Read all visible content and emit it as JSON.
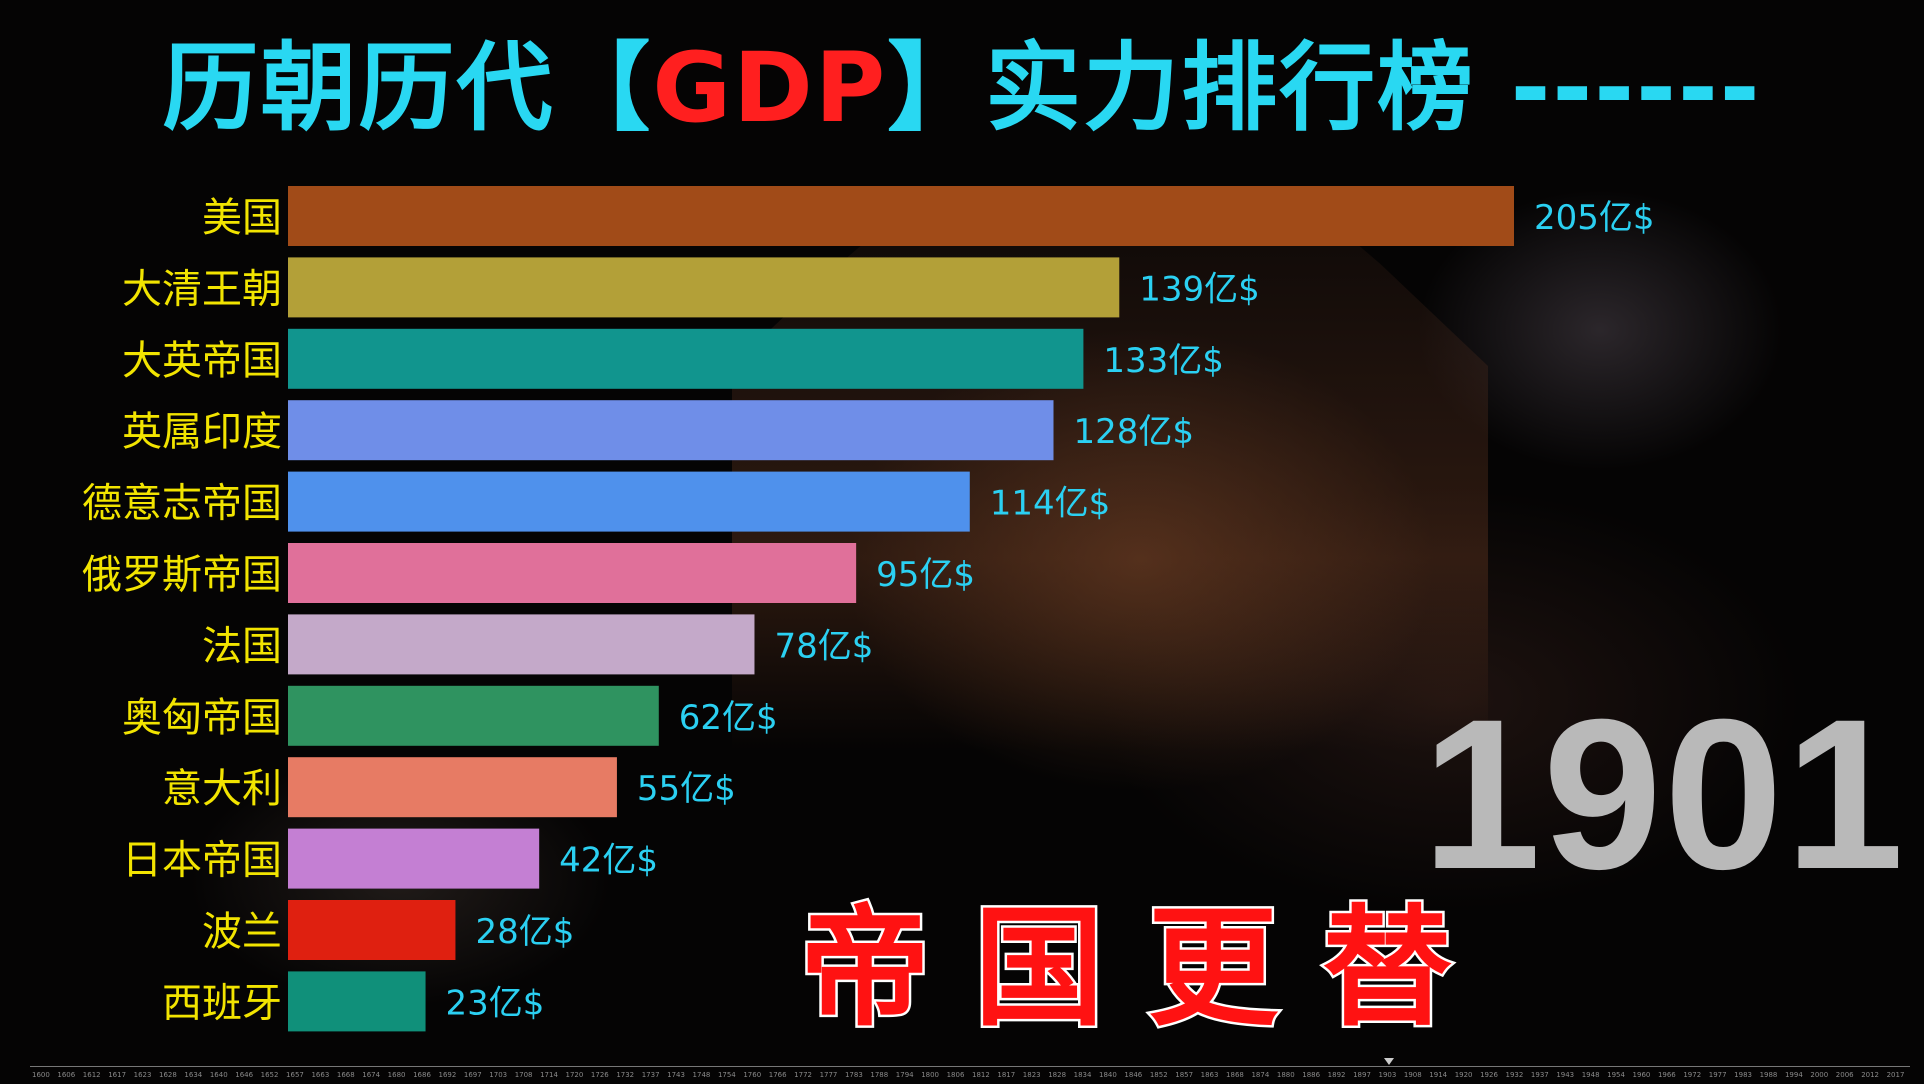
{
  "title": {
    "part1": "历朝历代【",
    "part2": "GDP",
    "part3": "】实力排行榜 ------"
  },
  "year": "1901",
  "slogan": "帝国更替",
  "chart_data": {
    "type": "bar",
    "orientation": "horizontal",
    "unit_suffix": "亿$",
    "categories": [
      "美国",
      "大清王朝",
      "大英帝国",
      "英属印度",
      "德意志帝国",
      "俄罗斯帝国",
      "法国",
      "奥匈帝国",
      "意大利",
      "日本帝国",
      "波兰",
      "西班牙"
    ],
    "values": [
      205,
      139,
      133,
      128,
      114,
      95,
      78,
      62,
      55,
      42,
      28,
      23
    ],
    "colors": [
      "#a14b18",
      "#b3a038",
      "#11958e",
      "#6f8ee8",
      "#4f91ec",
      "#e0709a",
      "#c4a9c9",
      "#2f9360",
      "#e77b64",
      "#c47fd3",
      "#df2010",
      "#10907a"
    ],
    "label_color": "#f2e400",
    "value_label_color": "#2bd0f2",
    "xlim": [
      0,
      205
    ],
    "grid": false,
    "legend": "none"
  },
  "timeline": {
    "ticks": [
      "1600",
      "1606",
      "1612",
      "1617",
      "1623",
      "1628",
      "1634",
      "1640",
      "1646",
      "1652",
      "1657",
      "1663",
      "1668",
      "1674",
      "1680",
      "1686",
      "1692",
      "1697",
      "1703",
      "1708",
      "1714",
      "1720",
      "1726",
      "1732",
      "1737",
      "1743",
      "1748",
      "1754",
      "1760",
      "1766",
      "1772",
      "1777",
      "1783",
      "1788",
      "1794",
      "1800",
      "1806",
      "1812",
      "1817",
      "1823",
      "1828",
      "1834",
      "1840",
      "1846",
      "1852",
      "1857",
      "1863",
      "1868",
      "1874",
      "1880",
      "1886",
      "1892",
      "1897",
      "1903",
      "1908",
      "1914",
      "1920",
      "1926",
      "1932",
      "1937",
      "1943",
      "1948",
      "1954",
      "1960",
      "1966",
      "1972",
      "1977",
      "1983",
      "1988",
      "1994",
      "2000",
      "2006",
      "2012",
      "2017"
    ]
  }
}
